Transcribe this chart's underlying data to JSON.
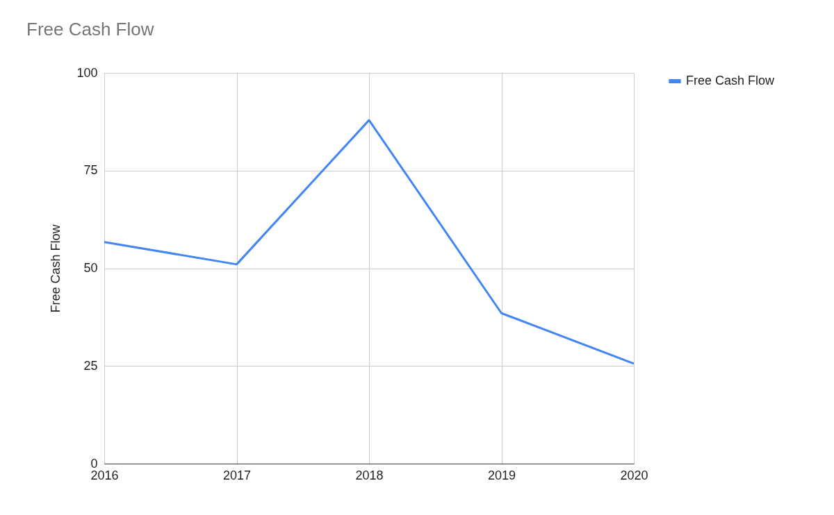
{
  "chart_data": {
    "type": "line",
    "title": "Free Cash Flow",
    "ylabel": "Free Cash Flow",
    "categories": [
      "2016",
      "2017",
      "2018",
      "2019",
      "2020"
    ],
    "series": [
      {
        "name": "Free Cash Flow",
        "color": "#4285f4",
        "values": [
          56.7,
          51,
          87.9,
          38.5,
          25.6
        ]
      }
    ],
    "ylim": [
      0,
      100
    ],
    "yticks": [
      0,
      25,
      50,
      75,
      100
    ],
    "grid": true,
    "legend": "top right"
  }
}
